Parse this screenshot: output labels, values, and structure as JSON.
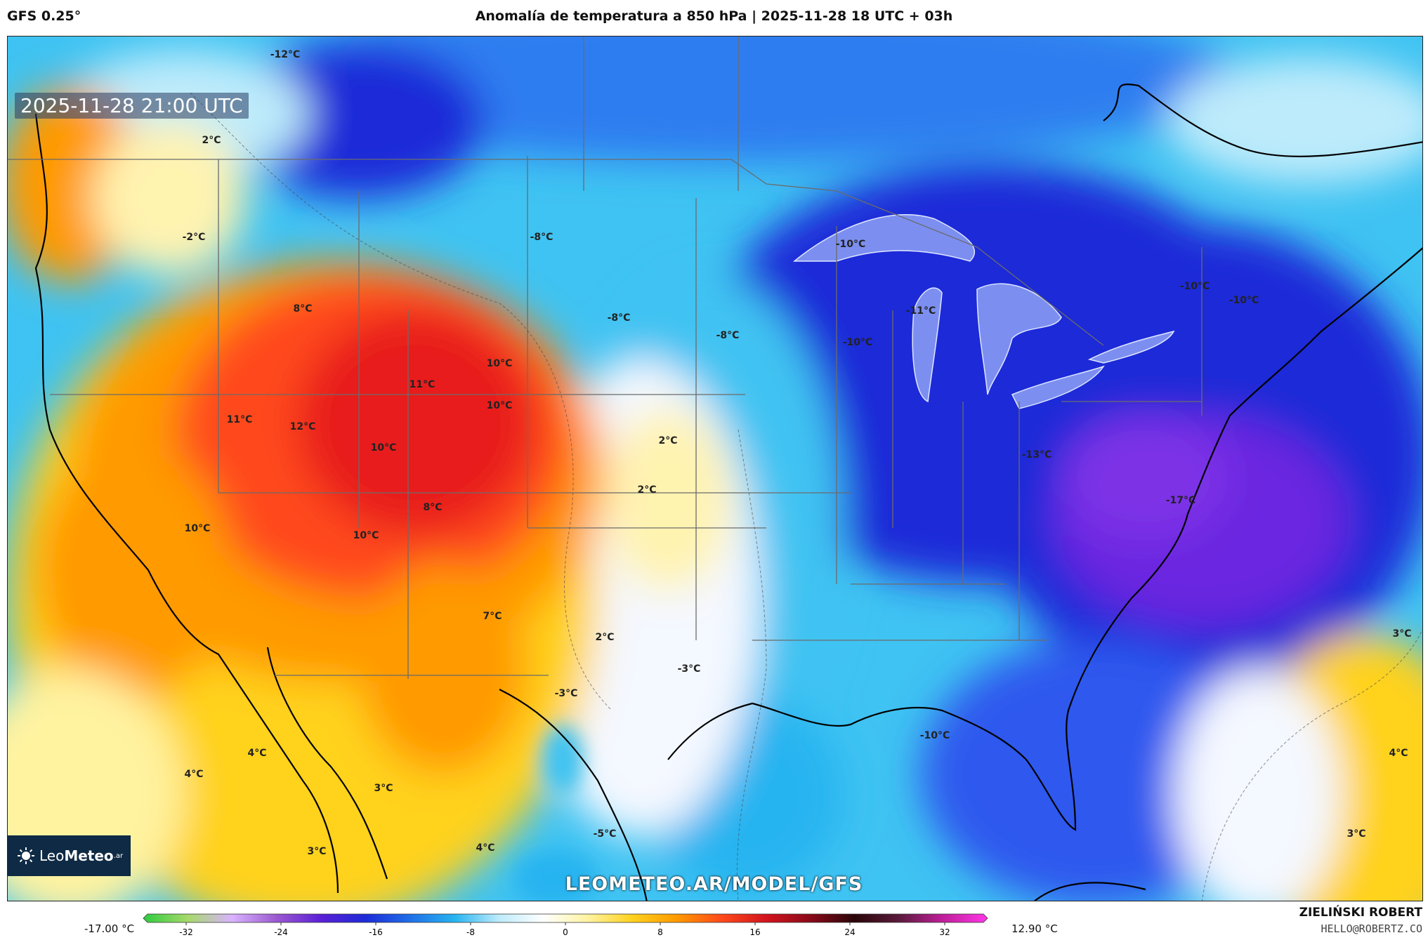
{
  "header": {
    "model": "GFS 0.25°",
    "title": "Anomalía de temperatura a 850 hPa | 2025-11-28 18 UTC + 03h"
  },
  "map": {
    "timestamp": "2025-11-28 21:00 UTC",
    "watermark": "LEOMETEO.AR/MODEL/GFS",
    "logo_text_light": "Leo",
    "logo_text_bold": "Meteo",
    "logo_suffix": ".ar",
    "labels": [
      {
        "text": "-12°C"
      },
      {
        "text": "2°C"
      },
      {
        "text": "-2°C"
      },
      {
        "text": "-8°C"
      },
      {
        "text": "8°C"
      },
      {
        "text": "-8°C"
      },
      {
        "text": "-8°C"
      },
      {
        "text": "-10°C"
      },
      {
        "text": "-10°C"
      },
      {
        "text": "-11°C"
      },
      {
        "text": "-10°C"
      },
      {
        "text": "-10°C"
      },
      {
        "text": "10°C"
      },
      {
        "text": "11°C"
      },
      {
        "text": "10°C"
      },
      {
        "text": "11°C"
      },
      {
        "text": "12°C"
      },
      {
        "text": "10°C"
      },
      {
        "text": "2°C"
      },
      {
        "text": "2°C"
      },
      {
        "text": "-13°C"
      },
      {
        "text": "8°C"
      },
      {
        "text": "10°C"
      },
      {
        "text": "10°C"
      },
      {
        "text": "-17°C"
      },
      {
        "text": "7°C"
      },
      {
        "text": "2°C"
      },
      {
        "text": "3°C"
      },
      {
        "text": "-3°C"
      },
      {
        "text": "-3°C"
      },
      {
        "text": "4°C"
      },
      {
        "text": "4°C"
      },
      {
        "text": "3°C"
      },
      {
        "text": "-10°C"
      },
      {
        "text": "4°C"
      },
      {
        "text": "-5°C"
      },
      {
        "text": "4°C"
      },
      {
        "text": "3°C"
      },
      {
        "text": "3°C"
      }
    ]
  },
  "colorbar": {
    "min_label": "-17.00 °C",
    "max_label": "12.90 °C",
    "ticks": [
      "-32",
      "-24",
      "-16",
      "-8",
      "0",
      "8",
      "16",
      "24",
      "32"
    ],
    "colors": [
      "#2ecc40",
      "#a6d96a",
      "#d9b3ff",
      "#9b59d0",
      "#5b1fd6",
      "#1d2bd8",
      "#1f6fe8",
      "#27b4f0",
      "#bdebfb",
      "#ffffff",
      "#fff3a0",
      "#ffd21e",
      "#ff9a00",
      "#ff4a1a",
      "#d4141e",
      "#8b0a1a",
      "#2a0608",
      "#5a1a3a",
      "#c01f9a",
      "#ff36e8"
    ]
  },
  "footer": {
    "author": "ZIELIŃSKI ROBERT",
    "contact": "HELLO@ROBERTZ.CO"
  }
}
